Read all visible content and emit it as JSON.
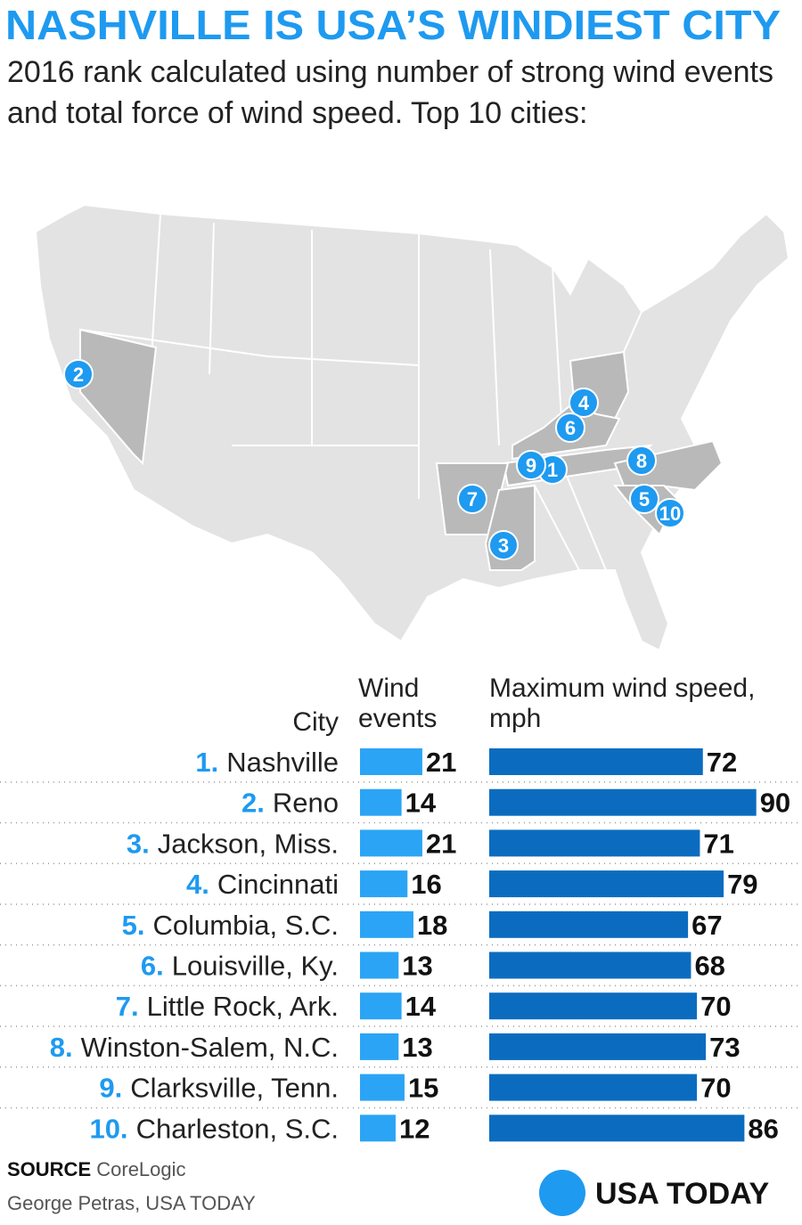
{
  "chart_data": {
    "type": "bar",
    "title": "NASHVILLE IS USA’S WINDIEST CITY",
    "subtitle": "2016 rank calculated using number of strong wind events and total force of wind speed. Top 10 cities:",
    "map_markers": [
      "1",
      "2",
      "3",
      "4",
      "5",
      "6",
      "7",
      "8",
      "9",
      "10"
    ],
    "category_header": "City",
    "ranks": [
      "1.",
      "2.",
      "3.",
      "4.",
      "5.",
      "6.",
      "7.",
      "8.",
      "9.",
      "10."
    ],
    "categories": [
      "Nashville",
      "Reno",
      "Jackson, Miss.",
      "Cincinnati",
      "Columbia, S.C.",
      "Louisville, Ky.",
      "Little Rock, Ark.",
      "Winston-Salem, N.C.",
      "Clarksville, Tenn.",
      "Charleston, S.C."
    ],
    "series": [
      {
        "name": "Wind events",
        "color": "#2ba4f5",
        "values": [
          21,
          14,
          21,
          16,
          18,
          13,
          14,
          13,
          15,
          12
        ]
      },
      {
        "name": "Maximum wind speed, mph",
        "color": "#0b6cbf",
        "values": [
          72,
          90,
          71,
          79,
          67,
          68,
          70,
          73,
          70,
          86
        ]
      }
    ],
    "source_label": "SOURCE",
    "source": "CoreLogic",
    "credit": "George Petras, USA TODAY",
    "logo": "USA TODAY"
  }
}
